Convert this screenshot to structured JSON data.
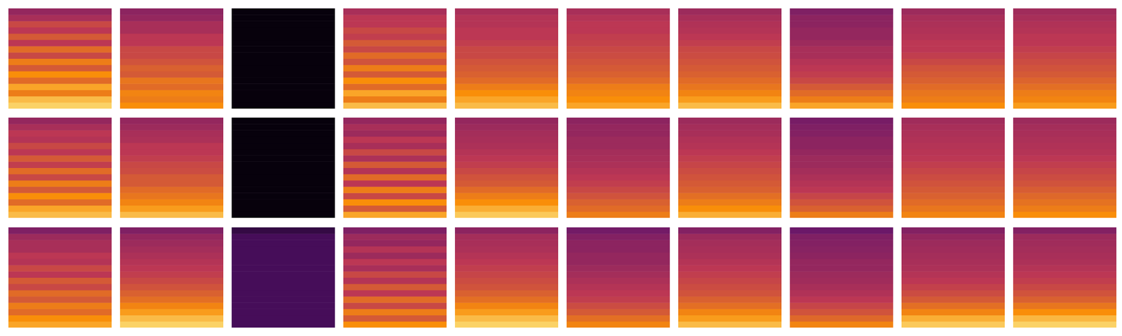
{
  "chart_data": {
    "type": "heatmap",
    "tick_labels": false,
    "zlim": [
      0,
      1
    ],
    "panels": [
      [
        [
          0.9,
          0.85,
          0.7,
          0.8,
          0.65,
          0.75,
          0.6,
          0.7,
          0.55,
          0.65,
          0.5,
          0.6,
          0.5,
          0.55,
          0.45,
          0.4
        ],
        [
          0.75,
          0.7,
          0.72,
          0.65,
          0.68,
          0.6,
          0.62,
          0.58,
          0.55,
          0.55,
          0.5,
          0.5,
          0.45,
          0.45,
          0.4,
          0.38
        ],
        [
          0.02,
          0.02,
          0.02,
          0.02,
          0.02,
          0.02,
          0.02,
          0.02,
          0.02,
          0.02,
          0.02,
          0.02,
          0.02,
          0.02,
          0.02,
          0.02
        ],
        [
          0.85,
          0.7,
          0.8,
          0.65,
          0.75,
          0.6,
          0.7,
          0.58,
          0.65,
          0.55,
          0.6,
          0.52,
          0.55,
          0.5,
          0.5,
          0.45
        ],
        [
          0.85,
          0.8,
          0.75,
          0.7,
          0.65,
          0.62,
          0.6,
          0.58,
          0.55,
          0.55,
          0.52,
          0.5,
          0.5,
          0.48,
          0.48,
          0.45
        ],
        [
          0.8,
          0.75,
          0.72,
          0.7,
          0.65,
          0.62,
          0.6,
          0.58,
          0.56,
          0.55,
          0.53,
          0.52,
          0.5,
          0.5,
          0.48,
          0.45
        ],
        [
          0.85,
          0.78,
          0.72,
          0.68,
          0.65,
          0.62,
          0.6,
          0.58,
          0.56,
          0.55,
          0.52,
          0.5,
          0.48,
          0.47,
          0.45,
          0.42
        ],
        [
          0.8,
          0.7,
          0.65,
          0.6,
          0.55,
          0.52,
          0.5,
          0.48,
          0.45,
          0.45,
          0.42,
          0.4,
          0.4,
          0.38,
          0.38,
          0.35
        ],
        [
          0.75,
          0.7,
          0.68,
          0.65,
          0.62,
          0.6,
          0.58,
          0.55,
          0.52,
          0.5,
          0.5,
          0.48,
          0.47,
          0.46,
          0.45,
          0.42
        ],
        [
          0.78,
          0.72,
          0.7,
          0.66,
          0.63,
          0.6,
          0.58,
          0.56,
          0.54,
          0.52,
          0.5,
          0.5,
          0.48,
          0.47,
          0.45,
          0.43
        ]
      ],
      [
        [
          0.85,
          0.8,
          0.65,
          0.75,
          0.6,
          0.7,
          0.55,
          0.65,
          0.52,
          0.6,
          0.5,
          0.55,
          0.48,
          0.5,
          0.45,
          0.4
        ],
        [
          0.85,
          0.78,
          0.72,
          0.68,
          0.65,
          0.6,
          0.6,
          0.56,
          0.55,
          0.52,
          0.5,
          0.5,
          0.46,
          0.45,
          0.42,
          0.4
        ],
        [
          0.02,
          0.02,
          0.02,
          0.02,
          0.02,
          0.02,
          0.02,
          0.02,
          0.02,
          0.02,
          0.02,
          0.02,
          0.02,
          0.02,
          0.02,
          0.02
        ],
        [
          0.8,
          0.6,
          0.75,
          0.55,
          0.7,
          0.5,
          0.65,
          0.48,
          0.6,
          0.46,
          0.55,
          0.45,
          0.5,
          0.42,
          0.45,
          0.4
        ],
        [
          0.88,
          0.82,
          0.75,
          0.7,
          0.65,
          0.6,
          0.58,
          0.55,
          0.52,
          0.5,
          0.48,
          0.46,
          0.45,
          0.44,
          0.42,
          0.4
        ],
        [
          0.7,
          0.65,
          0.62,
          0.58,
          0.55,
          0.52,
          0.5,
          0.48,
          0.46,
          0.45,
          0.44,
          0.42,
          0.42,
          0.4,
          0.4,
          0.38
        ],
        [
          0.82,
          0.75,
          0.7,
          0.66,
          0.62,
          0.6,
          0.58,
          0.56,
          0.54,
          0.52,
          0.5,
          0.48,
          0.47,
          0.45,
          0.44,
          0.42
        ],
        [
          0.7,
          0.62,
          0.58,
          0.54,
          0.5,
          0.48,
          0.46,
          0.44,
          0.42,
          0.42,
          0.4,
          0.38,
          0.38,
          0.36,
          0.35,
          0.33
        ],
        [
          0.72,
          0.68,
          0.65,
          0.62,
          0.6,
          0.58,
          0.56,
          0.54,
          0.52,
          0.5,
          0.49,
          0.48,
          0.47,
          0.46,
          0.45,
          0.43
        ],
        [
          0.75,
          0.7,
          0.67,
          0.64,
          0.61,
          0.58,
          0.56,
          0.54,
          0.52,
          0.5,
          0.48,
          0.47,
          0.46,
          0.45,
          0.44,
          0.42
        ]
      ],
      [
        [
          0.8,
          0.75,
          0.65,
          0.7,
          0.6,
          0.65,
          0.55,
          0.6,
          0.5,
          0.55,
          0.48,
          0.5,
          0.45,
          0.45,
          0.42,
          0.35
        ],
        [
          0.9,
          0.85,
          0.78,
          0.72,
          0.66,
          0.62,
          0.58,
          0.55,
          0.52,
          0.5,
          0.48,
          0.46,
          0.44,
          0.42,
          0.4,
          0.35
        ],
        [
          0.2,
          0.2,
          0.2,
          0.2,
          0.2,
          0.2,
          0.2,
          0.2,
          0.2,
          0.2,
          0.2,
          0.2,
          0.2,
          0.2,
          0.2,
          0.15
        ],
        [
          0.75,
          0.6,
          0.7,
          0.55,
          0.65,
          0.5,
          0.6,
          0.48,
          0.55,
          0.45,
          0.5,
          0.42,
          0.48,
          0.4,
          0.42,
          0.35
        ],
        [
          0.9,
          0.85,
          0.78,
          0.72,
          0.66,
          0.62,
          0.58,
          0.56,
          0.54,
          0.52,
          0.5,
          0.48,
          0.46,
          0.45,
          0.44,
          0.38
        ],
        [
          0.72,
          0.66,
          0.6,
          0.56,
          0.52,
          0.5,
          0.48,
          0.46,
          0.44,
          0.42,
          0.4,
          0.4,
          0.38,
          0.38,
          0.36,
          0.32
        ],
        [
          0.85,
          0.78,
          0.72,
          0.66,
          0.62,
          0.58,
          0.56,
          0.54,
          0.52,
          0.5,
          0.48,
          0.46,
          0.45,
          0.44,
          0.42,
          0.36
        ],
        [
          0.72,
          0.64,
          0.58,
          0.54,
          0.5,
          0.47,
          0.45,
          0.43,
          0.42,
          0.4,
          0.4,
          0.38,
          0.37,
          0.36,
          0.35,
          0.3
        ],
        [
          0.88,
          0.82,
          0.72,
          0.66,
          0.6,
          0.56,
          0.53,
          0.5,
          0.48,
          0.46,
          0.45,
          0.44,
          0.43,
          0.42,
          0.4,
          0.36
        ],
        [
          0.9,
          0.84,
          0.75,
          0.68,
          0.62,
          0.58,
          0.55,
          0.52,
          0.5,
          0.48,
          0.46,
          0.45,
          0.44,
          0.43,
          0.42,
          0.36
        ]
      ]
    ]
  }
}
